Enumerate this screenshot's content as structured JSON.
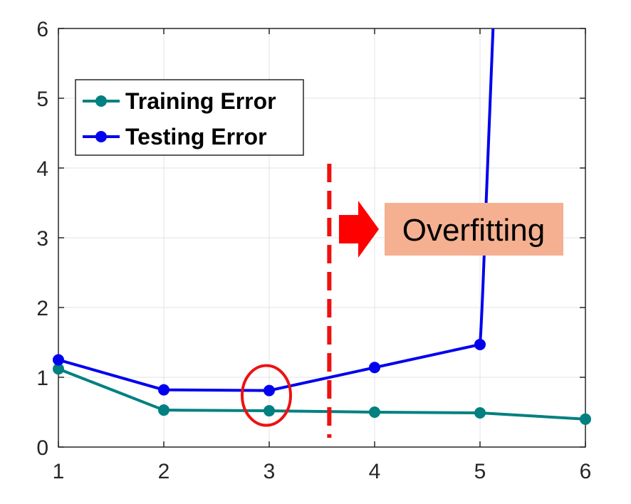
{
  "chart_data": {
    "type": "line",
    "x": [
      1,
      2,
      3,
      4,
      5,
      6
    ],
    "xlim": [
      1,
      6
    ],
    "ylim": [
      0,
      6
    ],
    "xticks": [
      "1",
      "2",
      "3",
      "4",
      "5",
      "6"
    ],
    "yticks": [
      "0",
      "1",
      "2",
      "3",
      "4",
      "5",
      "6"
    ],
    "grid": true,
    "legend_position": "top-left",
    "series": [
      {
        "name": "Training Error",
        "color": "#008080",
        "x": [
          1,
          2,
          3,
          4,
          5,
          6
        ],
        "values": [
          1.12,
          0.53,
          0.52,
          0.5,
          0.49,
          0.4
        ]
      },
      {
        "name": "Testing Error",
        "color": "#0000ee",
        "x": [
          1,
          2,
          3,
          4,
          5
        ],
        "values": [
          1.25,
          0.82,
          0.81,
          1.14,
          1.47
        ],
        "trend_after_last_point": "rises steeply above 6 just after x = 5"
      }
    ],
    "annotations": {
      "divider_x": 3.57,
      "divider_color": "#ee1111",
      "highlight_circle_x": 3,
      "highlight_circle_color": "#ee1111",
      "arrow_color": "#ff0000",
      "label": "Overfitting",
      "label_background": "#f4b090"
    }
  }
}
